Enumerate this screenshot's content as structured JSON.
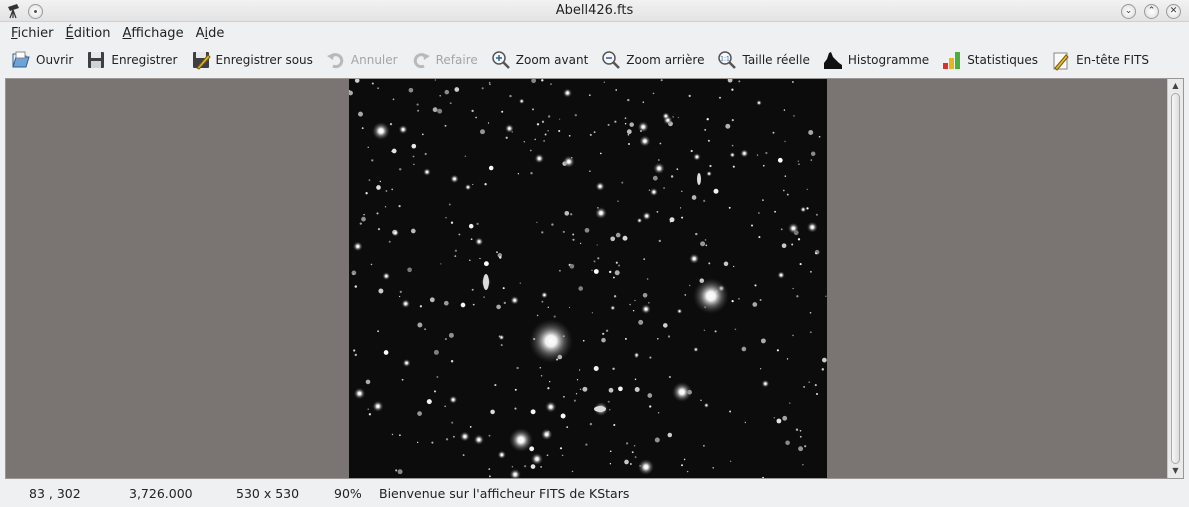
{
  "window": {
    "title": "Abell426.fts",
    "app_icon": "kstars-telescope-icon"
  },
  "menu": {
    "items": [
      {
        "accel": "F",
        "rest": "ichier"
      },
      {
        "accel": "É",
        "rest": "dition"
      },
      {
        "accel": "A",
        "rest": "ffichage"
      },
      {
        "pre": "A",
        "accel": "i",
        "rest": "de"
      }
    ]
  },
  "toolbar": {
    "open": "Ouvrir",
    "save": "Enregistrer",
    "save_as": "Enregistrer sous",
    "undo": "Annuler",
    "redo": "Refaire",
    "zoom_in": "Zoom avant",
    "zoom_out": "Zoom arrière",
    "actual_size": "Taille réelle",
    "histogram": "Histogramme",
    "statistics": "Statistiques",
    "fits_header": "En-tête FITS"
  },
  "status": {
    "coords": "83 , 302",
    "pixel_value": "3,726.000",
    "image_size": "530 x 530",
    "zoom": "90%",
    "message": "Bienvenue sur l'afficheur FITS de KStars"
  },
  "colors": {
    "viewport_bg": "#7a7572",
    "image_bg": "#0c0c0c"
  }
}
